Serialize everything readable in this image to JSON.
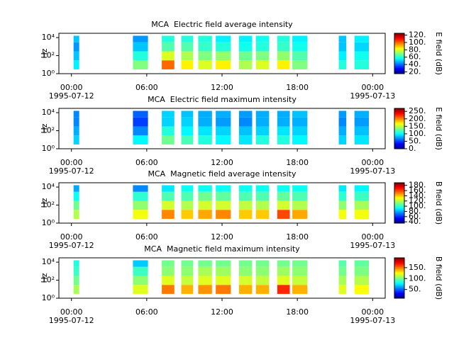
{
  "chart_data": [
    {
      "type": "spectrogram",
      "title": "MCA  Electric field average intensity",
      "ylabel": "Hz",
      "colorbar_label": "E field (dB)",
      "xlim": [
        -1,
        25
      ],
      "xticks": [
        {
          "value": 0,
          "label": "00:00"
        },
        {
          "value": 6,
          "label": "06:00"
        },
        {
          "value": 12,
          "label": "12:00"
        },
        {
          "value": 18,
          "label": "18:00"
        },
        {
          "value": 24,
          "label": "00:00"
        }
      ],
      "date_labels": [
        {
          "value": 0,
          "label": "1995-07-12"
        },
        {
          "value": 24,
          "label": "1995-07-13"
        }
      ],
      "ylim": [
        1,
        30000
      ],
      "log_y": true,
      "yticks": [
        {
          "value": 1,
          "label": "10⁰"
        },
        {
          "value": 100,
          "label": "10²"
        },
        {
          "value": 10000,
          "label": "10⁴"
        }
      ],
      "clim": [
        15,
        125
      ],
      "cticks": [
        {
          "value": 20,
          "label": "20."
        },
        {
          "value": 40,
          "label": "40."
        },
        {
          "value": 60,
          "label": "60."
        },
        {
          "value": 80,
          "label": "80."
        },
        {
          "value": 100,
          "label": "100."
        },
        {
          "value": 120,
          "label": "120."
        }
      ],
      "freq_bins": [
        3,
        30,
        300,
        3000,
        16000
      ],
      "blocks": [
        {
          "start": 0.17,
          "end": 0.62,
          "values": [
            55,
            50,
            45,
            50
          ]
        },
        {
          "start": 4.9,
          "end": 6.1,
          "values": [
            70,
            60,
            50,
            45
          ]
        },
        {
          "start": 7.2,
          "end": 8.2,
          "values": [
            100,
            80,
            65,
            60
          ]
        },
        {
          "start": 8.75,
          "end": 9.7,
          "values": [
            85,
            75,
            65,
            60
          ]
        },
        {
          "start": 10.1,
          "end": 11.2,
          "values": [
            80,
            70,
            62,
            60
          ]
        },
        {
          "start": 11.5,
          "end": 12.7,
          "values": [
            85,
            72,
            60,
            55
          ]
        },
        {
          "start": 13.35,
          "end": 14.4,
          "values": [
            75,
            68,
            58,
            55
          ]
        },
        {
          "start": 14.7,
          "end": 15.75,
          "values": [
            80,
            70,
            60,
            58
          ]
        },
        {
          "start": 16.4,
          "end": 17.4,
          "values": [
            85,
            72,
            62,
            60
          ]
        },
        {
          "start": 17.6,
          "end": 18.8,
          "values": [
            70,
            65,
            58,
            55
          ]
        },
        {
          "start": 21.3,
          "end": 21.9,
          "values": [
            60,
            55,
            50,
            50
          ]
        },
        {
          "start": 22.55,
          "end": 23.7,
          "values": [
            60,
            58,
            52,
            55
          ]
        }
      ]
    },
    {
      "type": "spectrogram",
      "title": "MCA  Electric field maximum intensity",
      "ylabel": "Hz",
      "colorbar_label": "E field (dB)",
      "xlim": [
        -1,
        25
      ],
      "xticks": [
        {
          "value": 0,
          "label": "00:00"
        },
        {
          "value": 6,
          "label": "06:00"
        },
        {
          "value": 12,
          "label": "12:00"
        },
        {
          "value": 18,
          "label": "18:00"
        },
        {
          "value": 24,
          "label": "00:00"
        }
      ],
      "date_labels": [
        {
          "value": 0,
          "label": "1995-07-12"
        },
        {
          "value": 24,
          "label": "1995-07-13"
        }
      ],
      "ylim": [
        1,
        30000
      ],
      "log_y": true,
      "yticks": [
        {
          "value": 1,
          "label": "10⁰"
        },
        {
          "value": 100,
          "label": "10²"
        },
        {
          "value": 10000,
          "label": "10⁴"
        }
      ],
      "clim": [
        0,
        270
      ],
      "cticks": [
        {
          "value": 0,
          "label": "0."
        },
        {
          "value": 50,
          "label": "50."
        },
        {
          "value": 100,
          "label": "100."
        },
        {
          "value": 150,
          "label": "150."
        },
        {
          "value": 200,
          "label": "200."
        },
        {
          "value": 250,
          "label": "250."
        }
      ],
      "freq_bins": [
        3,
        30,
        300,
        3000,
        16000
      ],
      "blocks": [
        {
          "start": 0.17,
          "end": 0.62,
          "values": [
            90,
            80,
            70,
            70
          ]
        },
        {
          "start": 4.9,
          "end": 6.1,
          "values": [
            100,
            70,
            50,
            60
          ]
        },
        {
          "start": 7.2,
          "end": 8.2,
          "values": [
            130,
            110,
            90,
            90
          ]
        },
        {
          "start": 8.75,
          "end": 9.7,
          "values": [
            120,
            100,
            90,
            85
          ]
        },
        {
          "start": 10.1,
          "end": 11.2,
          "values": [
            110,
            95,
            80,
            80
          ]
        },
        {
          "start": 11.5,
          "end": 12.7,
          "values": [
            100,
            90,
            75,
            80
          ]
        },
        {
          "start": 13.35,
          "end": 14.4,
          "values": [
            95,
            85,
            70,
            75
          ]
        },
        {
          "start": 14.7,
          "end": 15.75,
          "values": [
            110,
            90,
            80,
            80
          ]
        },
        {
          "start": 16.4,
          "end": 17.4,
          "values": [
            110,
            95,
            80,
            80
          ]
        },
        {
          "start": 17.6,
          "end": 18.8,
          "values": [
            100,
            90,
            80,
            85
          ]
        },
        {
          "start": 21.3,
          "end": 21.9,
          "values": [
            90,
            80,
            70,
            75
          ]
        },
        {
          "start": 22.55,
          "end": 23.7,
          "values": [
            95,
            85,
            75,
            80
          ]
        }
      ]
    },
    {
      "type": "spectrogram",
      "title": "MCA  Magnetic field average intensity",
      "ylabel": "Hz",
      "colorbar_label": "B field (dB)",
      "xlim": [
        -1,
        25
      ],
      "xticks": [
        {
          "value": 0,
          "label": "00:00"
        },
        {
          "value": 6,
          "label": "06:00"
        },
        {
          "value": 12,
          "label": "12:00"
        },
        {
          "value": 18,
          "label": "18:00"
        },
        {
          "value": 24,
          "label": "00:00"
        }
      ],
      "date_labels": [
        {
          "value": 0,
          "label": "1995-07-12"
        },
        {
          "value": 24,
          "label": "1995-07-13"
        }
      ],
      "ylim": [
        1,
        30000
      ],
      "log_y": true,
      "yticks": [
        {
          "value": 1,
          "label": "10⁰"
        },
        {
          "value": 100,
          "label": "10²"
        },
        {
          "value": 10000,
          "label": "10⁴"
        }
      ],
      "clim": [
        35,
        190
      ],
      "cticks": [
        {
          "value": 40,
          "label": "40."
        },
        {
          "value": 60,
          "label": "60."
        },
        {
          "value": 80,
          "label": "80."
        },
        {
          "value": 100,
          "label": "100."
        },
        {
          "value": 120,
          "label": "120."
        },
        {
          "value": 140,
          "label": "140."
        },
        {
          "value": 160,
          "label": "160."
        },
        {
          "value": 180,
          "label": "180."
        }
      ],
      "freq_bins": [
        3,
        30,
        300,
        3000,
        16000
      ],
      "blocks": [
        {
          "start": 0.17,
          "end": 0.62,
          "values": [
            120,
            110,
            95,
            80
          ]
        },
        {
          "start": 4.9,
          "end": 6.1,
          "values": [
            130,
            115,
            100,
            75
          ]
        },
        {
          "start": 7.2,
          "end": 8.2,
          "values": [
            150,
            125,
            105,
            90
          ]
        },
        {
          "start": 8.75,
          "end": 9.7,
          "values": [
            140,
            120,
            105,
            95
          ]
        },
        {
          "start": 10.1,
          "end": 11.2,
          "values": [
            145,
            125,
            110,
            95
          ]
        },
        {
          "start": 11.5,
          "end": 12.7,
          "values": [
            150,
            125,
            108,
            95
          ]
        },
        {
          "start": 13.35,
          "end": 14.4,
          "values": [
            140,
            122,
            105,
            95
          ]
        },
        {
          "start": 14.7,
          "end": 15.75,
          "values": [
            140,
            120,
            105,
            95
          ]
        },
        {
          "start": 16.4,
          "end": 17.4,
          "values": [
            160,
            125,
            108,
            95
          ]
        },
        {
          "start": 17.6,
          "end": 18.8,
          "values": [
            145,
            120,
            105,
            95
          ]
        },
        {
          "start": 21.3,
          "end": 21.9,
          "values": [
            130,
            115,
            100,
            90
          ]
        },
        {
          "start": 22.55,
          "end": 23.7,
          "values": [
            130,
            118,
            102,
            92
          ]
        }
      ]
    },
    {
      "type": "spectrogram",
      "title": "MCA  Magnetic field maximum intensity",
      "ylabel": "Hz",
      "colorbar_label": "B field (dB)",
      "xlim": [
        -1,
        25
      ],
      "xticks": [
        {
          "value": 0,
          "label": "00:00"
        },
        {
          "value": 6,
          "label": "06:00"
        },
        {
          "value": 12,
          "label": "12:00"
        },
        {
          "value": 18,
          "label": "18:00"
        },
        {
          "value": 24,
          "label": "00:00"
        }
      ],
      "date_labels": [
        {
          "value": 0,
          "label": "1995-07-12"
        },
        {
          "value": 24,
          "label": "1995-07-13"
        }
      ],
      "ylim": [
        1,
        30000
      ],
      "log_y": true,
      "yticks": [
        {
          "value": 1,
          "label": "10⁰"
        },
        {
          "value": 100,
          "label": "10²"
        },
        {
          "value": 10000,
          "label": "10⁴"
        }
      ],
      "clim": [
        10,
        195
      ],
      "cticks": [
        {
          "value": 50,
          "label": "50."
        },
        {
          "value": 100,
          "label": "100."
        },
        {
          "value": 150,
          "label": "150."
        }
      ],
      "freq_bins": [
        3,
        30,
        300,
        3000,
        16000
      ],
      "blocks": [
        {
          "start": 0.17,
          "end": 0.62,
          "values": [
            110,
            100,
            90,
            85
          ]
        },
        {
          "start": 4.9,
          "end": 6.1,
          "values": [
            120,
            105,
            90,
            70
          ]
        },
        {
          "start": 7.2,
          "end": 8.2,
          "values": [
            150,
            120,
            105,
            100
          ]
        },
        {
          "start": 8.75,
          "end": 9.7,
          "values": [
            140,
            115,
            105,
            100
          ]
        },
        {
          "start": 10.1,
          "end": 11.2,
          "values": [
            145,
            120,
            110,
            100
          ]
        },
        {
          "start": 11.5,
          "end": 12.7,
          "values": [
            150,
            120,
            108,
            100
          ]
        },
        {
          "start": 13.35,
          "end": 14.4,
          "values": [
            140,
            118,
            105,
            100
          ]
        },
        {
          "start": 14.7,
          "end": 15.75,
          "values": [
            140,
            115,
            105,
            100
          ]
        },
        {
          "start": 16.4,
          "end": 17.4,
          "values": [
            165,
            120,
            108,
            100
          ]
        },
        {
          "start": 17.6,
          "end": 18.8,
          "values": [
            140,
            115,
            105,
            100
          ]
        },
        {
          "start": 21.3,
          "end": 21.9,
          "values": [
            120,
            110,
            100,
            95
          ]
        },
        {
          "start": 22.55,
          "end": 23.7,
          "values": [
            125,
            112,
            102,
            97
          ]
        }
      ]
    }
  ]
}
